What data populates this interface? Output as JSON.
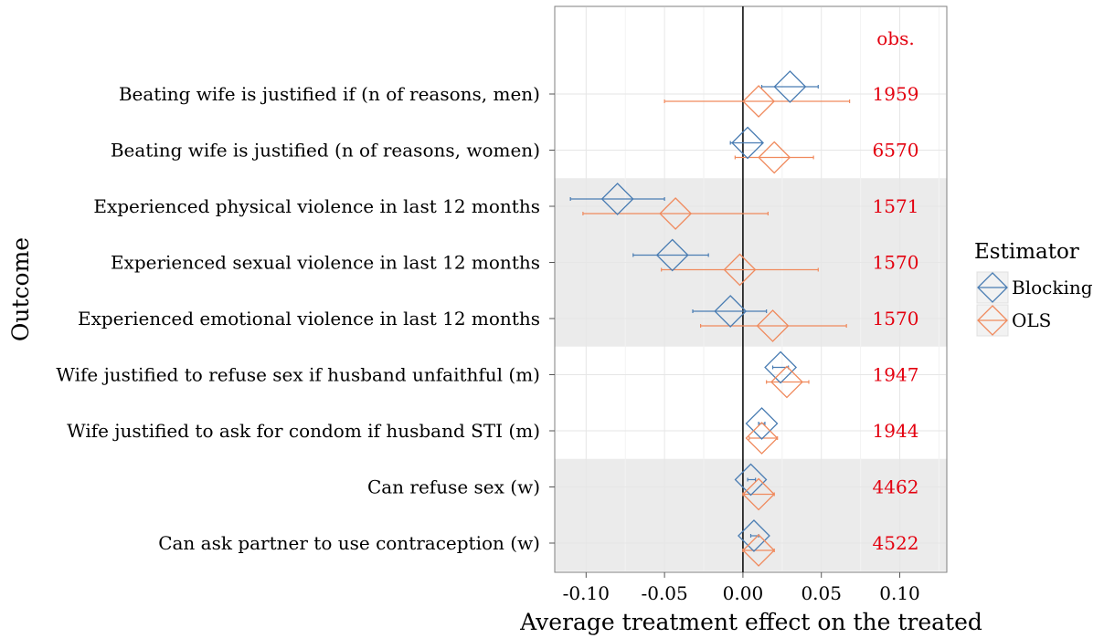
{
  "chart_data": {
    "type": "forest",
    "xlabel": "Average treatment effect on the treated",
    "ylabel": "Outcome",
    "xlim": [
      -0.12,
      0.13
    ],
    "xticks": [
      -0.1,
      -0.05,
      0.0,
      0.05,
      0.1
    ],
    "xtick_labels": [
      "-0.10",
      "-0.05",
      "0.00",
      "0.05",
      "0.10"
    ],
    "reference_line": 0,
    "obs_header": "obs.",
    "shaded_groups": [
      [
        2,
        4
      ],
      [
        7,
        8
      ]
    ],
    "legend": {
      "title": "Estimator",
      "placement": "right",
      "entries": [
        "Blocking",
        "OLS"
      ]
    },
    "colors": {
      "Blocking": "#4a7db3",
      "OLS": "#f08a5d",
      "obs": "#e3000f",
      "shade": "#ebebeb",
      "grid": "#e6e6e6"
    },
    "outcomes": [
      "Beating wife is justified if (n of reasons, men)",
      "Beating wife is justified (n of reasons, women)",
      "Experienced physical violence in last 12 months",
      "Experienced sexual violence in last 12 months",
      "Experienced emotional violence in last 12 months",
      "Wife justified to refuse sex if husband unfaithful (m)",
      "Wife justified to ask for condom if husband STI (m)",
      "Can refuse sex (w)",
      "Can ask partner to use contraception (w)"
    ],
    "obs": [
      "1959",
      "6570",
      "1571",
      "1570",
      "1570",
      "1947",
      "1944",
      "4462",
      "4522"
    ],
    "series": [
      {
        "name": "Blocking",
        "estimate": [
          0.03,
          0.003,
          -0.08,
          -0.045,
          -0.008,
          0.024,
          0.012,
          0.005,
          0.007
        ],
        "lower": [
          0.012,
          -0.008,
          -0.11,
          -0.07,
          -0.032,
          0.019,
          0.01,
          0.003,
          0.005
        ],
        "upper": [
          0.048,
          0.012,
          -0.05,
          -0.022,
          0.015,
          0.029,
          0.014,
          0.008,
          0.01
        ]
      },
      {
        "name": "OLS",
        "estimate": [
          0.01,
          0.02,
          -0.043,
          -0.002,
          0.019,
          0.028,
          0.012,
          0.01,
          0.01
        ],
        "lower": [
          -0.05,
          -0.005,
          -0.102,
          -0.052,
          -0.027,
          0.015,
          0.004,
          0.0,
          0.0
        ],
        "upper": [
          0.068,
          0.045,
          0.016,
          0.048,
          0.066,
          0.042,
          0.022,
          0.02,
          0.02
        ]
      }
    ]
  }
}
